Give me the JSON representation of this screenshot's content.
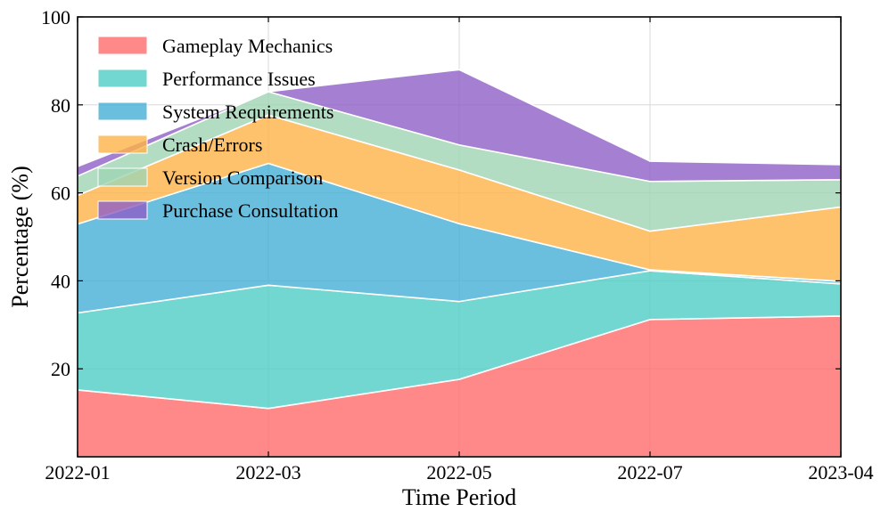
{
  "chart_data": {
    "type": "area",
    "stacked": true,
    "title": "",
    "xlabel": "Time Period",
    "ylabel": "Percentage (%)",
    "ylim": [
      0,
      100
    ],
    "yticks": [
      20,
      40,
      60,
      80,
      100
    ],
    "grid": true,
    "legend_position": "top-left",
    "categories": [
      "2022-01",
      "2022-03",
      "2022-05",
      "2022-07",
      "2023-04"
    ],
    "series": [
      {
        "name": "Gameplay Mechanics",
        "color": "#ff6b6b",
        "values": [
          15.2,
          11.0,
          17.6,
          31.2,
          32.0
        ]
      },
      {
        "name": "Performance Issues",
        "color": "#4ecdc4",
        "values": [
          17.5,
          28.0,
          17.7,
          11.1,
          7.3
        ]
      },
      {
        "name": "System Requirements",
        "color": "#45aed6",
        "values": [
          20.2,
          27.7,
          17.7,
          0.2,
          0.6
        ]
      },
      {
        "name": "Crash/Errors",
        "color": "#ffb347",
        "values": [
          6.5,
          11.0,
          12.2,
          8.8,
          16.9
        ]
      },
      {
        "name": "Version Comparison",
        "color": "#9fd5b4",
        "values": [
          4.4,
          5.3,
          5.7,
          11.3,
          6.2
        ]
      },
      {
        "name": "Purchase Consultation",
        "color": "#8e5fc6",
        "values": [
          2.2,
          0.0,
          17.1,
          4.6,
          3.4
        ]
      }
    ]
  }
}
